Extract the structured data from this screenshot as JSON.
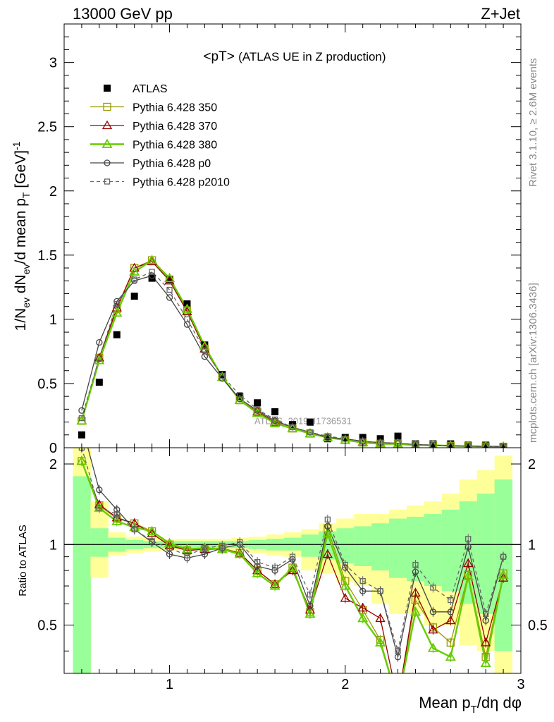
{
  "header": {
    "left": "13000 GeV pp",
    "right": "Z+Jet"
  },
  "side_labels": {
    "rivet": "Rivet 3.1.10, ≥ 2.6M events",
    "mcplots": "mcplots.cern.ch [arXiv:1306.3436]"
  },
  "watermark": "ATLAS_2019_I1736531",
  "chart_data": [
    {
      "type": "line",
      "panel": "main",
      "title_main": "<pT>",
      "title_sub": "(ATLAS UE in Z production)",
      "ylabel": "1/N_ev dN_ev/d mean p_T [GeV]^-1",
      "xlim": [
        0.4,
        3.0
      ],
      "ylim": [
        0,
        3.3
      ],
      "xticks": [
        "1",
        "2",
        "3"
      ],
      "yticks": [
        "0",
        "0.5",
        "1",
        "1.5",
        "2",
        "2.5",
        "3"
      ],
      "x": [
        0.5,
        0.6,
        0.7,
        0.8,
        0.9,
        1.0,
        1.1,
        1.2,
        1.3,
        1.4,
        1.5,
        1.6,
        1.7,
        1.8,
        1.9,
        2.0,
        2.1,
        2.2,
        2.3,
        2.4,
        2.5,
        2.6,
        2.7,
        2.8,
        2.9
      ],
      "legend_position": "top-left",
      "series": [
        {
          "name": "ATLAS",
          "style": "data",
          "color": "#000000",
          "values": [
            0.1,
            0.51,
            0.88,
            1.18,
            1.32,
            1.31,
            1.12,
            0.8,
            0.57,
            0.4,
            0.35,
            0.28,
            0.18,
            0.2,
            0.07,
            0.08,
            0.08,
            0.07,
            0.09,
            0.03,
            0.03,
            0.03,
            0.02,
            0.02,
            0.01
          ]
        },
        {
          "name": "Pythia 6.428 350",
          "style": "square-open",
          "color": "#999900",
          "values": [
            0.21,
            0.7,
            1.08,
            1.4,
            1.46,
            1.31,
            1.07,
            0.77,
            0.55,
            0.37,
            0.28,
            0.19,
            0.15,
            0.11,
            0.08,
            0.06,
            0.04,
            0.03,
            0.03,
            0.02,
            0.02,
            0.015,
            0.012,
            0.01,
            0.008
          ]
        },
        {
          "name": "Pythia 6.428 370",
          "style": "triangle-open",
          "color": "#990000",
          "values": [
            0.21,
            0.7,
            1.09,
            1.4,
            1.45,
            1.3,
            1.06,
            0.77,
            0.55,
            0.37,
            0.28,
            0.2,
            0.15,
            0.11,
            0.08,
            0.06,
            0.045,
            0.035,
            0.03,
            0.02,
            0.02,
            0.015,
            0.012,
            0.01,
            0.008
          ]
        },
        {
          "name": "Pythia 6.428 380",
          "style": "triangle-open-thick",
          "color": "#66cc00",
          "values": [
            0.21,
            0.68,
            1.05,
            1.37,
            1.46,
            1.32,
            1.08,
            0.79,
            0.55,
            0.37,
            0.27,
            0.19,
            0.15,
            0.11,
            0.08,
            0.06,
            0.04,
            0.03,
            0.03,
            0.02,
            0.02,
            0.015,
            0.012,
            0.01,
            0.008
          ]
        },
        {
          "name": "Pythia 6.428 p0",
          "style": "circle-open",
          "color": "#444444",
          "values": [
            0.29,
            0.82,
            1.14,
            1.3,
            1.34,
            1.17,
            0.96,
            0.71,
            0.54,
            0.38,
            0.29,
            0.21,
            0.16,
            0.12,
            0.08,
            0.07,
            0.05,
            0.04,
            0.035,
            0.025,
            0.02,
            0.015,
            0.012,
            0.01,
            0.008
          ]
        },
        {
          "name": "Pythia 6.428 p2010",
          "style": "square-open-dashed",
          "color": "#666666",
          "values": [
            0.23,
            0.7,
            1.12,
            1.31,
            1.37,
            1.23,
            1.0,
            0.76,
            0.56,
            0.41,
            0.3,
            0.22,
            0.16,
            0.12,
            0.09,
            0.07,
            0.05,
            0.04,
            0.035,
            0.025,
            0.02,
            0.015,
            0.012,
            0.01,
            0.008
          ]
        }
      ]
    },
    {
      "type": "line",
      "panel": "ratio",
      "xlabel": "Mean p_T/dη dφ",
      "ylabel": "Ratio to ATLAS",
      "xlim": [
        0.4,
        3.0
      ],
      "ylim": [
        0.33,
        2.3
      ],
      "xticks": [
        "1",
        "2",
        "3"
      ],
      "yticks": [
        "0.5",
        "1",
        "2"
      ],
      "x": [
        0.5,
        0.6,
        0.7,
        0.8,
        0.9,
        1.0,
        1.1,
        1.2,
        1.3,
        1.4,
        1.5,
        1.6,
        1.7,
        1.8,
        1.9,
        2.0,
        2.1,
        2.2,
        2.3,
        2.4,
        2.5,
        2.6,
        2.7,
        2.8,
        2.9
      ],
      "band_yellow": {
        "low": [
          0.33,
          0.75,
          0.91,
          0.93,
          0.94,
          0.95,
          0.96,
          0.96,
          0.95,
          0.95,
          0.93,
          0.91,
          0.9,
          0.8,
          0.78,
          0.73,
          0.7,
          0.6,
          0.55,
          0.55,
          0.5,
          0.5,
          0.42,
          0.4,
          0.33
        ],
        "high": [
          2.3,
          1.45,
          1.11,
          1.07,
          1.06,
          1.05,
          1.05,
          1.05,
          1.05,
          1.06,
          1.07,
          1.09,
          1.11,
          1.14,
          1.2,
          1.25,
          1.3,
          1.3,
          1.35,
          1.4,
          1.45,
          1.55,
          1.75,
          1.9,
          2.15
        ]
      },
      "band_green": {
        "low": [
          0.33,
          0.9,
          0.94,
          0.96,
          0.97,
          0.97,
          0.97,
          0.97,
          0.97,
          0.97,
          0.96,
          0.95,
          0.95,
          0.9,
          0.88,
          0.85,
          0.83,
          0.8,
          0.75,
          0.73,
          0.7,
          0.67,
          0.6,
          0.55,
          0.4
        ],
        "high": [
          1.8,
          1.15,
          1.06,
          1.04,
          1.03,
          1.03,
          1.03,
          1.03,
          1.03,
          1.03,
          1.04,
          1.05,
          1.06,
          1.09,
          1.12,
          1.15,
          1.17,
          1.2,
          1.25,
          1.27,
          1.3,
          1.35,
          1.45,
          1.55,
          1.75
        ]
      },
      "series": [
        {
          "name": "Pythia 6.428 350",
          "style": "square-open",
          "color": "#999900",
          "values": [
            2.05,
            1.4,
            1.25,
            1.2,
            1.12,
            1.0,
            0.95,
            0.96,
            0.97,
            0.93,
            0.8,
            0.71,
            0.82,
            0.56,
            1.15,
            0.73,
            0.57,
            0.44,
            0.26,
            0.62,
            0.49,
            0.43,
            0.77,
            0.38,
            0.78
          ]
        },
        {
          "name": "Pythia 6.428 370",
          "style": "triangle-open",
          "color": "#990000",
          "values": [
            2.05,
            1.41,
            1.26,
            1.2,
            1.1,
            0.99,
            0.95,
            0.96,
            0.96,
            0.93,
            0.8,
            0.71,
            0.8,
            0.57,
            0.92,
            0.63,
            0.58,
            0.53,
            0.26,
            0.66,
            0.48,
            0.52,
            0.85,
            0.43,
            0.75
          ]
        },
        {
          "name": "Pythia 6.428 380",
          "style": "triangle-open-thick",
          "color": "#66cc00",
          "values": [
            2.05,
            1.37,
            1.22,
            1.16,
            1.12,
            1.01,
            0.96,
            0.97,
            0.96,
            0.92,
            0.78,
            0.7,
            0.82,
            0.55,
            1.1,
            0.7,
            0.53,
            0.43,
            0.26,
            0.56,
            0.41,
            0.38,
            0.76,
            0.36,
            0.77
          ]
        },
        {
          "name": "Pythia 6.428 p0",
          "style": "circle-open",
          "color": "#444444",
          "values": [
            2.8,
            1.6,
            1.35,
            1.14,
            1.02,
            0.92,
            0.89,
            0.92,
            0.97,
            1.0,
            0.83,
            0.8,
            0.88,
            0.59,
            1.17,
            0.82,
            0.67,
            0.67,
            0.38,
            0.79,
            0.56,
            0.56,
            0.98,
            0.52,
            0.9
          ]
        },
        {
          "name": "Pythia 6.428 p2010",
          "style": "square-open-dashed",
          "color": "#666666",
          "values": [
            2.3,
            1.37,
            1.3,
            1.14,
            1.03,
            0.97,
            0.91,
            0.97,
            0.99,
            1.02,
            0.86,
            0.82,
            0.9,
            0.65,
            1.24,
            0.84,
            0.73,
            0.67,
            0.4,
            0.84,
            0.69,
            0.62,
            1.05,
            0.55,
            0.9
          ]
        }
      ]
    }
  ]
}
